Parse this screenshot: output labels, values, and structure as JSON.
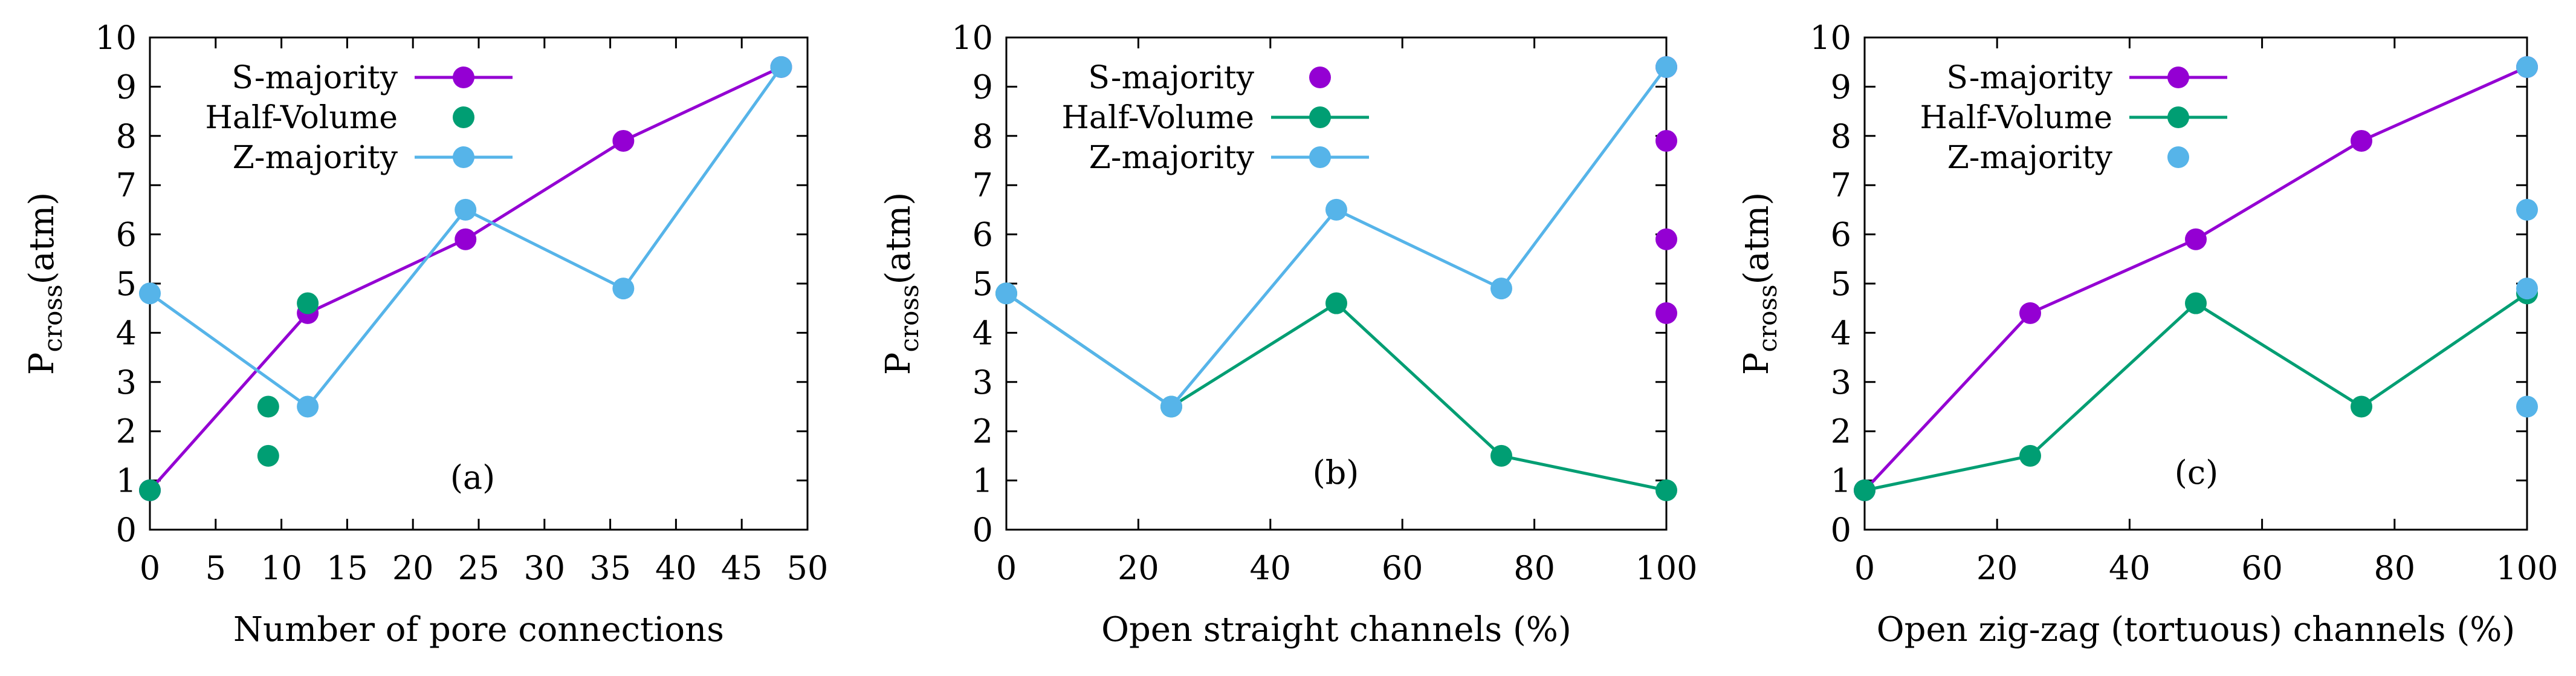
{
  "chart_data": [
    {
      "type": "line",
      "panel_label": "(a)",
      "xlabel": "Number of pore connections",
      "ylabel": {
        "main": "P",
        "sub": "cross",
        "unit": "(atm)"
      },
      "xlim": [
        0,
        50
      ],
      "ylim": [
        0,
        10
      ],
      "xticks": [
        0,
        5,
        10,
        15,
        20,
        25,
        30,
        35,
        40,
        45,
        50
      ],
      "yticks": [
        0,
        1,
        2,
        3,
        4,
        5,
        6,
        7,
        8,
        9,
        10
      ],
      "grid": false,
      "legend_position": "top-left",
      "series": [
        {
          "name": "S-majority",
          "color": "#9400d3",
          "lines": true,
          "points": true,
          "x": [
            0,
            12,
            24,
            36,
            48
          ],
          "y": [
            0.8,
            4.4,
            5.9,
            7.9,
            9.4
          ]
        },
        {
          "name": "Half-Volume",
          "color": "#009e73",
          "lines": false,
          "points": true,
          "x": [
            0,
            9,
            9,
            12
          ],
          "y": [
            0.8,
            1.5,
            2.5,
            4.6
          ]
        },
        {
          "name": "Z-majority",
          "color": "#56b4e9",
          "lines": true,
          "points": true,
          "x": [
            0,
            12,
            24,
            36,
            48
          ],
          "y": [
            4.8,
            2.5,
            6.5,
            4.9,
            9.4
          ]
        }
      ]
    },
    {
      "type": "line",
      "panel_label": "(b)",
      "xlabel": "Open straight channels (%)",
      "ylabel": {
        "main": "P",
        "sub": "cross",
        "unit": "(atm)"
      },
      "xlim": [
        0,
        100
      ],
      "ylim": [
        0,
        10
      ],
      "xticks": [
        0,
        20,
        40,
        60,
        80,
        100
      ],
      "yticks": [
        0,
        1,
        2,
        3,
        4,
        5,
        6,
        7,
        8,
        9,
        10
      ],
      "grid": false,
      "legend_position": "top-left",
      "series": [
        {
          "name": "S-majority",
          "color": "#9400d3",
          "lines": false,
          "points": true,
          "x": [
            100,
            100,
            100,
            100
          ],
          "y": [
            4.4,
            5.9,
            7.9,
            9.4
          ]
        },
        {
          "name": "Half-Volume",
          "color": "#009e73",
          "lines": true,
          "points": true,
          "x": [
            0,
            25,
            50,
            75,
            100
          ],
          "y": [
            4.8,
            2.5,
            4.6,
            1.5,
            0.8
          ]
        },
        {
          "name": "Z-majority",
          "color": "#56b4e9",
          "lines": true,
          "points": true,
          "x": [
            0,
            25,
            50,
            75,
            100
          ],
          "y": [
            4.8,
            2.5,
            6.5,
            4.9,
            9.4
          ]
        }
      ]
    },
    {
      "type": "line",
      "panel_label": "(c)",
      "xlabel": "Open zig-zag (tortuous) channels (%)",
      "ylabel": {
        "main": "P",
        "sub": "cross",
        "unit": "(atm)"
      },
      "xlim": [
        0,
        100
      ],
      "ylim": [
        0,
        10
      ],
      "xticks": [
        0,
        20,
        40,
        60,
        80,
        100
      ],
      "yticks": [
        0,
        1,
        2,
        3,
        4,
        5,
        6,
        7,
        8,
        9,
        10
      ],
      "grid": false,
      "legend_position": "top-left",
      "series": [
        {
          "name": "S-majority",
          "color": "#9400d3",
          "lines": true,
          "points": true,
          "x": [
            0,
            25,
            50,
            75,
            100
          ],
          "y": [
            0.8,
            4.4,
            5.9,
            7.9,
            9.4
          ]
        },
        {
          "name": "Half-Volume",
          "color": "#009e73",
          "lines": true,
          "points": true,
          "x": [
            0,
            25,
            50,
            75,
            100
          ],
          "y": [
            0.8,
            1.5,
            4.6,
            2.5,
            4.8
          ]
        },
        {
          "name": "Z-majority",
          "color": "#56b4e9",
          "lines": false,
          "points": true,
          "x": [
            100,
            100,
            100,
            100
          ],
          "y": [
            2.5,
            4.9,
            6.5,
            9.4
          ]
        }
      ]
    }
  ]
}
